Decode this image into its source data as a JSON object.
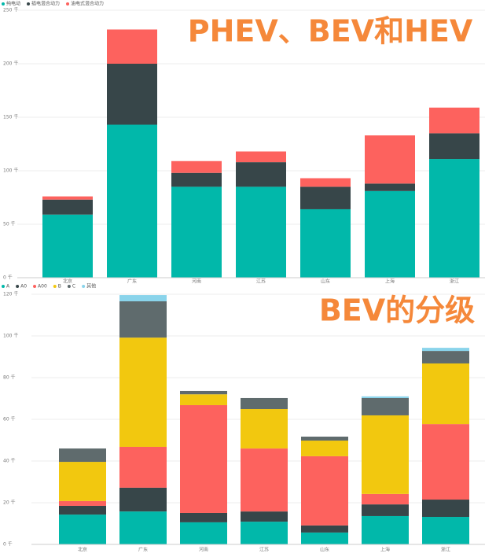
{
  "chart_data": [
    {
      "type": "bar",
      "stacked": true,
      "annotation": "PHEV、BEV和HEV",
      "categories": [
        "北京",
        "广东",
        "河南",
        "江苏",
        "山东",
        "上海",
        "浙江"
      ],
      "series": [
        {
          "name": "纯电动",
          "color": "#01b8aa",
          "values": [
            59,
            143,
            85,
            85,
            64,
            81,
            111
          ]
        },
        {
          "name": "插电混合动力",
          "color": "#374649",
          "values": [
            14,
            57,
            13,
            23,
            21,
            7,
            24
          ]
        },
        {
          "name": "油电式混合动力",
          "color": "#fd625e",
          "values": [
            3,
            32,
            11,
            10,
            8,
            45,
            24
          ]
        }
      ],
      "ylim": [
        0,
        250
      ],
      "yticks": [
        {
          "value": 0,
          "label": "0 千"
        },
        {
          "value": 50,
          "label": "50 千"
        },
        {
          "value": 100,
          "label": "100 千"
        },
        {
          "value": 150,
          "label": "150 千"
        },
        {
          "value": 200,
          "label": "200 千"
        },
        {
          "value": 250,
          "label": "250 千"
        }
      ],
      "grid": true
    },
    {
      "type": "bar",
      "stacked": true,
      "annotation": "BEV的分级",
      "categories": [
        "北京",
        "广东",
        "河南",
        "江苏",
        "山东",
        "上海",
        "浙江"
      ],
      "series": [
        {
          "name": "A",
          "color": "#01b8aa",
          "values": [
            14.3,
            15.8,
            10.6,
            10.9,
            5.7,
            13.6,
            13.2
          ]
        },
        {
          "name": "A0",
          "color": "#374649",
          "values": [
            4.2,
            11.4,
            4.5,
            4.9,
            3.4,
            5.6,
            8.3
          ]
        },
        {
          "name": "A00",
          "color": "#fd625e",
          "values": [
            2.3,
            19.6,
            51.7,
            30.2,
            33.2,
            5,
            36.2
          ]
        },
        {
          "name": "B",
          "color": "#f2c80f",
          "values": [
            18.8,
            52.4,
            5.2,
            18.9,
            7.5,
            37.7,
            29.1
          ]
        },
        {
          "name": "C",
          "color": "#5f6b6d",
          "values": [
            6.4,
            17.4,
            1.6,
            5.3,
            1.9,
            8.3,
            6
          ]
        },
        {
          "name": "其他",
          "color": "#8ad4eb",
          "values": [
            0,
            3,
            0,
            0,
            0,
            0.8,
            1.5
          ]
        }
      ],
      "ylim": [
        0,
        120
      ],
      "yticks": [
        {
          "value": 0,
          "label": "0 千"
        },
        {
          "value": 20,
          "label": "20 千"
        },
        {
          "value": 40,
          "label": "40 千"
        },
        {
          "value": 60,
          "label": "60 千"
        },
        {
          "value": 80,
          "label": "80 千"
        },
        {
          "value": 100,
          "label": "100 千"
        },
        {
          "value": 120,
          "label": "120 千"
        }
      ],
      "grid": true
    }
  ]
}
